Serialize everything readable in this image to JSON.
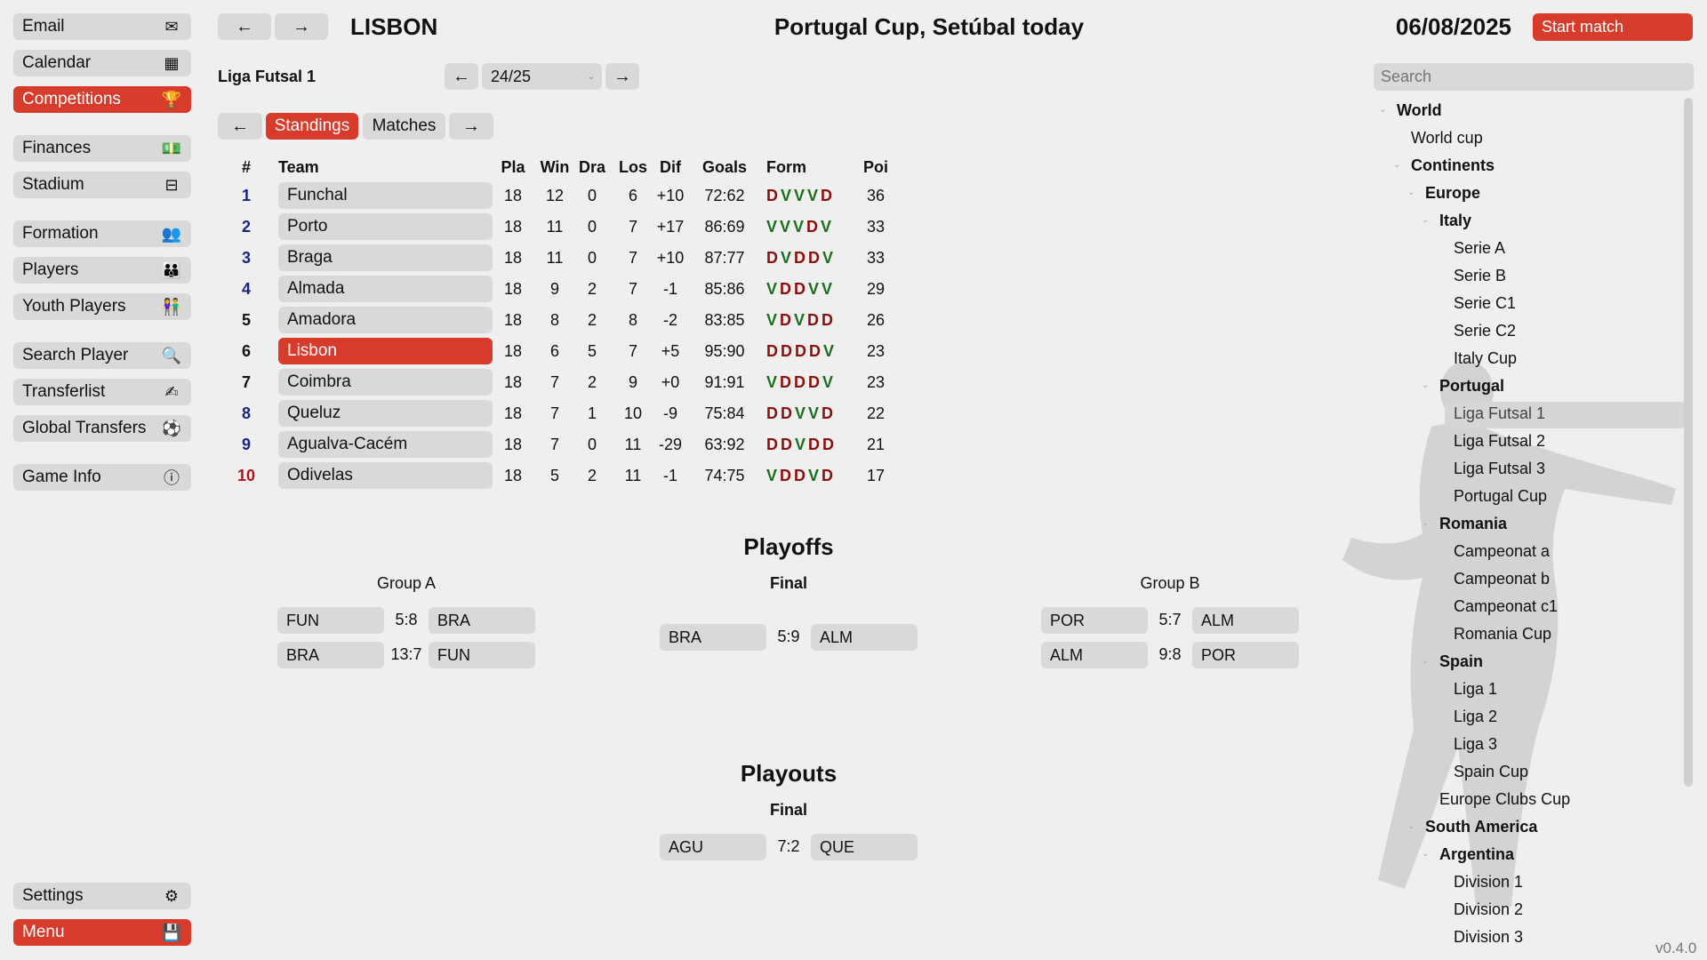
{
  "sidebar": {
    "group1": [
      {
        "label": "Email",
        "icon": "email-icon",
        "glyph": "✉"
      },
      {
        "label": "Calendar",
        "icon": "calendar-icon",
        "glyph": "▦"
      },
      {
        "label": "Competitions",
        "icon": "trophy-icon",
        "glyph": "🏆",
        "active": true
      }
    ],
    "group2": [
      {
        "label": "Finances",
        "icon": "money-icon",
        "glyph": "💵"
      },
      {
        "label": "Stadium",
        "icon": "stadium-icon",
        "glyph": "⊟"
      }
    ],
    "group3": [
      {
        "label": "Formation",
        "icon": "formation-icon",
        "glyph": "👥"
      },
      {
        "label": "Players",
        "icon": "players-icon",
        "glyph": "👪"
      },
      {
        "label": "Youth Players",
        "icon": "youth-players-icon",
        "glyph": "👫"
      }
    ],
    "group4": [
      {
        "label": "Search Player",
        "icon": "magnifier-icon",
        "glyph": "🔍"
      },
      {
        "label": "Transferlist",
        "icon": "transfer-icon",
        "glyph": "✍"
      },
      {
        "label": "Global Transfers",
        "icon": "globe-icon",
        "glyph": "⚽"
      }
    ],
    "group5": [
      {
        "label": "Game Info",
        "icon": "info-icon",
        "glyph": "ⓘ"
      }
    ],
    "settings": {
      "label": "Settings",
      "glyph": "⚙"
    },
    "menu": {
      "label": "Menu",
      "glyph": "💾"
    }
  },
  "header": {
    "back": "←",
    "forward": "→",
    "team": "LISBON",
    "headline": "Portugal Cup, Setúbal today",
    "date": "06/08/2025",
    "start_match": "Start match"
  },
  "competition": {
    "name": "Liga Futsal 1",
    "season_prev": "←",
    "season": "24/25",
    "season_next": "→"
  },
  "tabs": {
    "prev": "←",
    "standings": "Standings",
    "matches": "Matches",
    "next": "→"
  },
  "standings": {
    "headers": [
      "#",
      "Team",
      "Pla",
      "Win",
      "Dra",
      "Los",
      "Dif",
      "Goals",
      "Form",
      "Poi"
    ],
    "rows": [
      {
        "pos": "1",
        "team": "Funchal",
        "pla": "18",
        "win": "12",
        "dra": "0",
        "los": "6",
        "dif": "+10",
        "goals": "72:62",
        "form": [
          "D",
          "V",
          "V",
          "V",
          "D"
        ],
        "poi": "36",
        "posColor": "#1a237e"
      },
      {
        "pos": "2",
        "team": "Porto",
        "pla": "18",
        "win": "11",
        "dra": "0",
        "los": "7",
        "dif": "+17",
        "goals": "86:69",
        "form": [
          "V",
          "V",
          "V",
          "D",
          "V"
        ],
        "poi": "33",
        "posColor": "#1a237e"
      },
      {
        "pos": "3",
        "team": "Braga",
        "pla": "18",
        "win": "11",
        "dra": "0",
        "los": "7",
        "dif": "+10",
        "goals": "87:77",
        "form": [
          "D",
          "V",
          "D",
          "D",
          "V"
        ],
        "poi": "33",
        "posColor": "#1a237e"
      },
      {
        "pos": "4",
        "team": "Almada",
        "pla": "18",
        "win": "9",
        "dra": "2",
        "los": "7",
        "dif": "-1",
        "goals": "85:86",
        "form": [
          "V",
          "D",
          "D",
          "V",
          "V"
        ],
        "poi": "29",
        "posColor": "#1a237e"
      },
      {
        "pos": "5",
        "team": "Amadora",
        "pla": "18",
        "win": "8",
        "dra": "2",
        "los": "8",
        "dif": "-2",
        "goals": "83:85",
        "form": [
          "V",
          "D",
          "V",
          "D",
          "D"
        ],
        "poi": "26",
        "posColor": "#111"
      },
      {
        "pos": "6",
        "team": "Lisbon",
        "pla": "18",
        "win": "6",
        "dra": "5",
        "los": "7",
        "dif": "+5",
        "goals": "95:90",
        "form": [
          "D",
          "D",
          "D",
          "D",
          "V"
        ],
        "poi": "23",
        "posColor": "#111",
        "highlight": true
      },
      {
        "pos": "7",
        "team": "Coimbra",
        "pla": "18",
        "win": "7",
        "dra": "2",
        "los": "9",
        "dif": "+0",
        "goals": "91:91",
        "form": [
          "V",
          "D",
          "D",
          "D",
          "V"
        ],
        "poi": "23",
        "posColor": "#111"
      },
      {
        "pos": "8",
        "team": "Queluz",
        "pla": "18",
        "win": "7",
        "dra": "1",
        "los": "10",
        "dif": "-9",
        "goals": "75:84",
        "form": [
          "D",
          "D",
          "V",
          "V",
          "D"
        ],
        "poi": "22",
        "posColor": "#1a237e"
      },
      {
        "pos": "9",
        "team": "Agualva-Cacém",
        "pla": "18",
        "win": "7",
        "dra": "0",
        "los": "11",
        "dif": "-29",
        "goals": "63:92",
        "form": [
          "D",
          "D",
          "V",
          "D",
          "D"
        ],
        "poi": "21",
        "posColor": "#1a237e"
      },
      {
        "pos": "10",
        "team": "Odivelas",
        "pla": "18",
        "win": "5",
        "dra": "2",
        "los": "11",
        "dif": "-1",
        "goals": "74:75",
        "form": [
          "V",
          "D",
          "D",
          "V",
          "D"
        ],
        "poi": "17",
        "posColor": "#b0121b"
      }
    ]
  },
  "playoffs": {
    "title": "Playoffs",
    "groupA": {
      "title": "Group A",
      "matches": [
        {
          "home": "FUN",
          "score": "5:8",
          "away": "BRA"
        },
        {
          "home": "BRA",
          "score": "13:7",
          "away": "FUN"
        }
      ]
    },
    "final": {
      "title": "Final",
      "matches": [
        {
          "home": "BRA",
          "score": "5:9",
          "away": "ALM"
        }
      ]
    },
    "groupB": {
      "title": "Group B",
      "matches": [
        {
          "home": "POR",
          "score": "5:7",
          "away": "ALM"
        },
        {
          "home": "ALM",
          "score": "9:8",
          "away": "POR"
        }
      ]
    }
  },
  "playouts": {
    "title": "Playouts",
    "final": {
      "title": "Final",
      "matches": [
        {
          "home": "AGU",
          "score": "7:2",
          "away": "QUE"
        }
      ]
    }
  },
  "search": {
    "placeholder": "Search"
  },
  "tree": [
    {
      "label": "World",
      "level": 0,
      "bold": true,
      "chevron": true
    },
    {
      "label": "World cup",
      "level": 1
    },
    {
      "label": "Continents",
      "level": 1,
      "bold": true,
      "chevron": true
    },
    {
      "label": "Europe",
      "level": 2,
      "bold": true,
      "chevron": true
    },
    {
      "label": "Italy",
      "level": 3,
      "bold": true,
      "chevron": true
    },
    {
      "label": "Serie A",
      "level": 4
    },
    {
      "label": "Serie B",
      "level": 4
    },
    {
      "label": "Serie C1",
      "level": 4
    },
    {
      "label": "Serie C2",
      "level": 4
    },
    {
      "label": "Italy Cup",
      "level": 4
    },
    {
      "label": "Portugal",
      "level": 3,
      "bold": true,
      "chevron": true
    },
    {
      "label": "Liga Futsal 1",
      "level": 4,
      "selected": true
    },
    {
      "label": "Liga Futsal 2",
      "level": 4
    },
    {
      "label": "Liga Futsal 3",
      "level": 4
    },
    {
      "label": "Portugal Cup",
      "level": 4
    },
    {
      "label": "Romania",
      "level": 3,
      "bold": true,
      "chevron": true
    },
    {
      "label": "Campeonat a",
      "level": 4
    },
    {
      "label": "Campeonat b",
      "level": 4
    },
    {
      "label": "Campeonat c1",
      "level": 4
    },
    {
      "label": "Romania Cup",
      "level": 4
    },
    {
      "label": "Spain",
      "level": 3,
      "bold": true,
      "chevron": true
    },
    {
      "label": "Liga 1",
      "level": 4
    },
    {
      "label": "Liga 2",
      "level": 4
    },
    {
      "label": "Liga 3",
      "level": 4
    },
    {
      "label": "Spain Cup",
      "level": 4
    },
    {
      "label": "Europe Clubs Cup",
      "level": 3
    },
    {
      "label": "South America",
      "level": 2,
      "bold": true,
      "chevron": true
    },
    {
      "label": "Argentina",
      "level": 3,
      "bold": true,
      "chevron": true
    },
    {
      "label": "Division 1",
      "level": 4
    },
    {
      "label": "Division 2",
      "level": 4
    },
    {
      "label": "Division 3",
      "level": 4
    }
  ],
  "version": "v0.4.0"
}
